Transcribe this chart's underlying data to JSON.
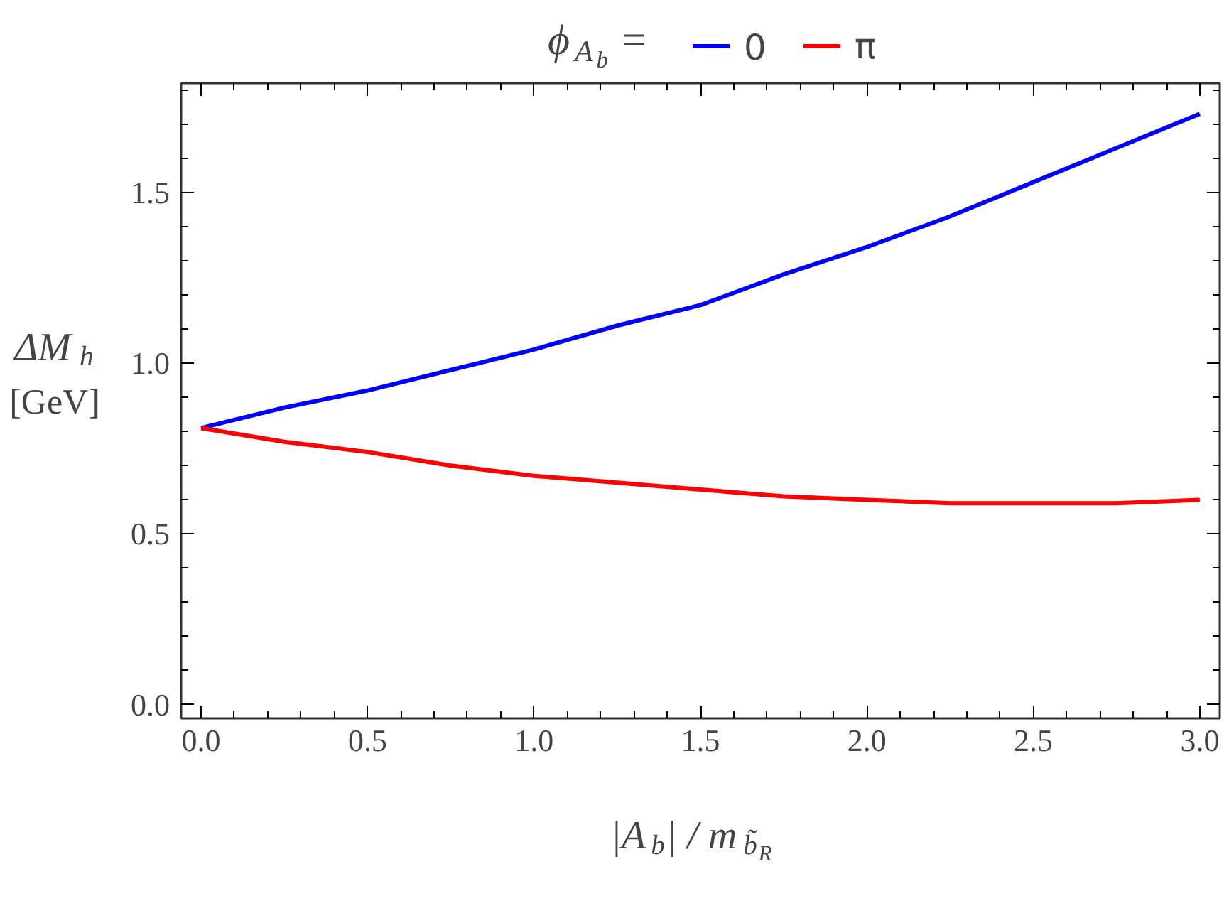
{
  "chart_data": {
    "type": "line",
    "xlabel": "|A$_{b}$| / m$_{b̃}$$_{R}$",
    "ylabel": "ΔM$_{h}$ [GeV]",
    "legend_title": "ϕ$_{A}$$_{b}$ =",
    "x": [
      0,
      0.25,
      0.5,
      0.75,
      1.0,
      1.25,
      1.5,
      1.75,
      2.0,
      2.25,
      2.5,
      2.75,
      3.0
    ],
    "series": [
      {
        "name": "0",
        "color": "#0000ff",
        "values": [
          0.81,
          0.87,
          0.92,
          0.98,
          1.04,
          1.11,
          1.17,
          1.26,
          1.34,
          1.43,
          1.53,
          1.63,
          1.73
        ]
      },
      {
        "name": "π",
        "color": "#ff0000",
        "values": [
          0.81,
          0.77,
          0.74,
          0.7,
          0.67,
          0.65,
          0.63,
          0.61,
          0.6,
          0.59,
          0.59,
          0.59,
          0.6
        ]
      }
    ],
    "xlim": [
      -0.06,
      3.06
    ],
    "ylim": [
      -0.04,
      1.82
    ],
    "xticks": [
      {
        "value": 0,
        "label": "0.0"
      },
      {
        "value": 0.5,
        "label": "0.5"
      },
      {
        "value": 1,
        "label": "1.0"
      },
      {
        "value": 1.5,
        "label": "1.5"
      },
      {
        "value": 2,
        "label": "2.0"
      },
      {
        "value": 2.5,
        "label": "2.5"
      },
      {
        "value": 3,
        "label": "3.0"
      }
    ],
    "yticks": [
      {
        "value": 0,
        "label": "0.0"
      },
      {
        "value": 0.5,
        "label": "0.5"
      },
      {
        "value": 1,
        "label": "1.0"
      },
      {
        "value": 1.5,
        "label": "1.5"
      }
    ],
    "grid": false,
    "legend": "top",
    "marker": "none",
    "line_style": "solid"
  }
}
